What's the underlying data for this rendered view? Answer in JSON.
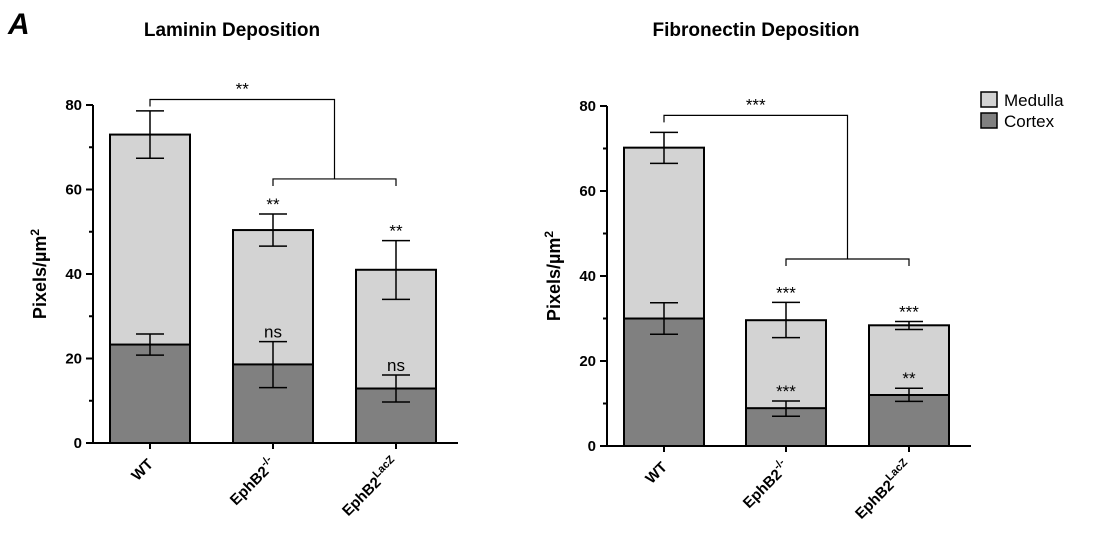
{
  "panel_letter": "A",
  "legend": [
    {
      "label": "Medulla",
      "color": "#d3d3d3"
    },
    {
      "label": "Cortex",
      "color": "#808080"
    }
  ],
  "chart_data": [
    {
      "type": "bar",
      "stacked": true,
      "title": "Laminin Deposition",
      "ylabel": "Pixels/µm",
      "ylabel_sup": "2",
      "ylim": [
        0,
        80
      ],
      "yticks": [
        "0",
        "20",
        "40",
        "60",
        "80"
      ],
      "categories": [
        {
          "base": "WT",
          "sup": ""
        },
        {
          "base": "EphB2",
          "sup": "-/-"
        },
        {
          "base": "EphB2",
          "sup": "LacZ"
        }
      ],
      "series": [
        {
          "name": "Cortex",
          "color": "#808080",
          "values": [
            23.3,
            18.6,
            12.9
          ],
          "err_low": [
            20.8,
            13.1,
            9.7
          ],
          "err_high": [
            25.8,
            24.0,
            16.1
          ],
          "sig": [
            "",
            "ns",
            "ns"
          ]
        },
        {
          "name": "Medulla",
          "color": "#d3d3d3",
          "totals": [
            73.0,
            50.4,
            41.0
          ],
          "err_low": [
            67.4,
            46.6,
            34.0
          ],
          "err_high": [
            78.6,
            54.2,
            47.9
          ],
          "sig": [
            "",
            "**",
            "**"
          ]
        }
      ],
      "brackets": [
        {
          "from": 1,
          "to": 2,
          "y": 62.5,
          "label": ""
        },
        {
          "from": 0,
          "to": "mid12",
          "y": 81.3,
          "label": "**"
        }
      ]
    },
    {
      "type": "bar",
      "stacked": true,
      "title": "Fibronectin Deposition",
      "ylabel": "Pixels/µm",
      "ylabel_sup": "2",
      "ylim": [
        0,
        80
      ],
      "yticks": [
        "0",
        "20",
        "40",
        "60",
        "80"
      ],
      "categories": [
        {
          "base": "WT",
          "sup": ""
        },
        {
          "base": "EphB2",
          "sup": "-/-"
        },
        {
          "base": "EphB2",
          "sup": "LacZ"
        }
      ],
      "series": [
        {
          "name": "Cortex",
          "color": "#808080",
          "values": [
            30.0,
            8.9,
            12.0
          ],
          "err_low": [
            26.3,
            7.0,
            10.5
          ],
          "err_high": [
            33.7,
            10.6,
            13.6
          ],
          "sig": [
            "",
            "***",
            "**"
          ]
        },
        {
          "name": "Medulla",
          "color": "#d3d3d3",
          "totals": [
            70.2,
            29.6,
            28.4
          ],
          "err_low": [
            66.5,
            25.5,
            27.4
          ],
          "err_high": [
            73.8,
            33.8,
            29.3
          ],
          "sig": [
            "",
            "***",
            "***"
          ]
        }
      ],
      "brackets": [
        {
          "from": 1,
          "to": 2,
          "y": 44.0,
          "label": ""
        },
        {
          "from": 0,
          "to": "mid12",
          "y": 77.8,
          "label": "***"
        }
      ]
    }
  ]
}
